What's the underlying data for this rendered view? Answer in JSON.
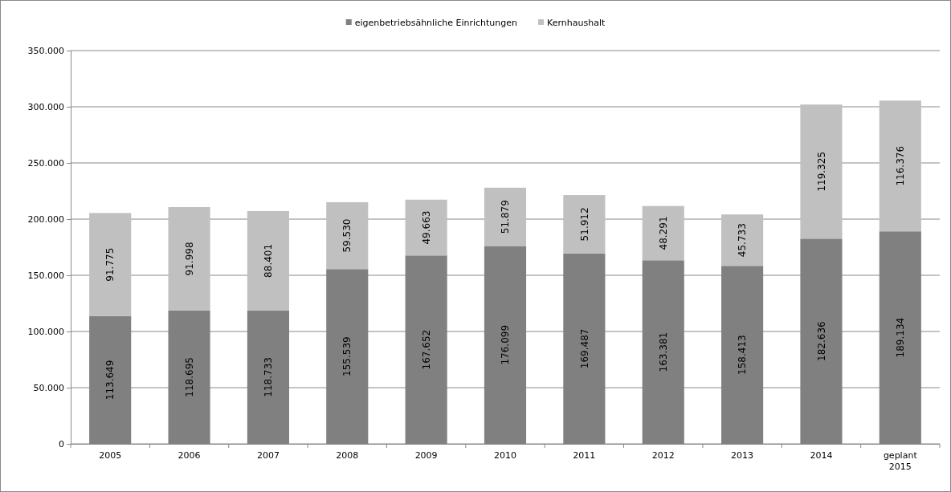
{
  "chart_data": {
    "type": "bar",
    "stacked": true,
    "legend": "top",
    "grid": "y",
    "categories": [
      "2005",
      "2006",
      "2007",
      "2008",
      "2009",
      "2010",
      "2011",
      "2012",
      "2013",
      "2014",
      "geplant 2015"
    ],
    "series": [
      {
        "name": "eigenbetriebsähnliche Einrichtungen",
        "color": "#808080",
        "values": [
          113649,
          118695,
          118733,
          155539,
          167652,
          176099,
          169487,
          163381,
          158413,
          182636,
          189134
        ],
        "value_labels": [
          "113.649",
          "118.695",
          "118.733",
          "155.539",
          "167.652",
          "176.099",
          "169.487",
          "163.381",
          "158.413",
          "182.636",
          "189.134"
        ]
      },
      {
        "name": "Kernhaushalt",
        "color": "#c0c0c0",
        "values": [
          91775,
          91998,
          88401,
          59530,
          49663,
          51879,
          51912,
          48291,
          45733,
          119325,
          116376
        ],
        "value_labels": [
          "91.775",
          "91.998",
          "88.401",
          "59.530",
          "49.663",
          "51.879",
          "51.912",
          "48.291",
          "45.733",
          "119.325",
          "116.376"
        ]
      }
    ],
    "ylim": [
      0,
      350000
    ],
    "yticks": [
      0,
      {
        "value": 50000,
        "label": "50.000"
      },
      {
        "value": 100000,
        "label": "100.000"
      },
      {
        "value": 150000,
        "label": "150.000"
      },
      {
        "value": 200000,
        "label": "200.000"
      },
      {
        "value": 250000,
        "label": "250.000"
      },
      {
        "value": 300000,
        "label": "300.000"
      },
      {
        "value": 350000,
        "label": "350.000"
      }
    ]
  }
}
